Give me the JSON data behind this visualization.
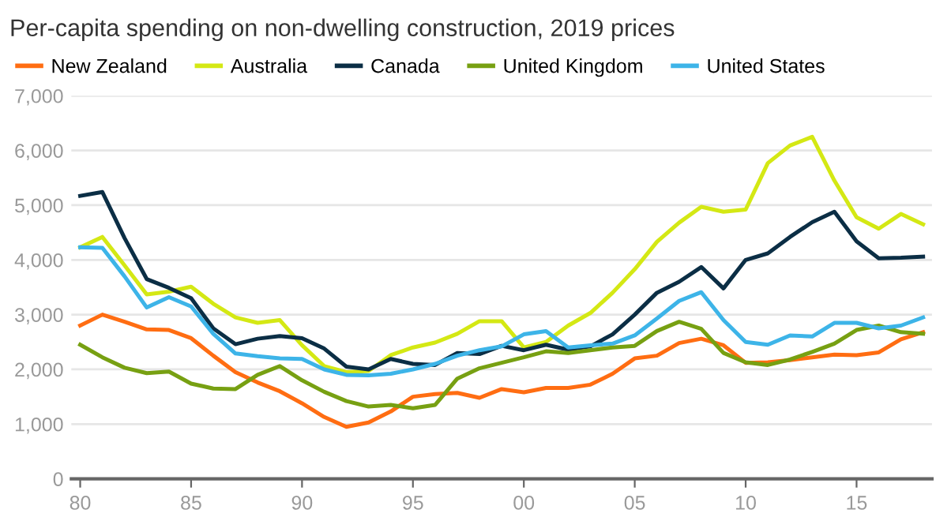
{
  "chart_data": {
    "type": "line",
    "title": "Per-capita spending on non-dwelling construction, 2019 prices",
    "x": [
      1980,
      1981,
      1982,
      1983,
      1984,
      1985,
      1986,
      1987,
      1988,
      1989,
      1990,
      1991,
      1992,
      1993,
      1994,
      1995,
      1996,
      1997,
      1998,
      1999,
      2000,
      2001,
      2002,
      2003,
      2004,
      2005,
      2006,
      2007,
      2008,
      2009,
      2010,
      2011,
      2012,
      2013,
      2014,
      2015,
      2016,
      2017,
      2018
    ],
    "series": [
      {
        "name": "New Zealand",
        "color": "#ff6d12",
        "values": [
          2800,
          3000,
          2870,
          2730,
          2720,
          2570,
          2250,
          1950,
          1760,
          1600,
          1380,
          1130,
          950,
          1030,
          1230,
          1500,
          1550,
          1570,
          1480,
          1640,
          1580,
          1660,
          1660,
          1720,
          1920,
          2200,
          2250,
          2480,
          2560,
          2440,
          2120,
          2130,
          2170,
          2220,
          2270,
          2260,
          2310,
          2550,
          2680
        ]
      },
      {
        "name": "Australia",
        "color": "#d4e814",
        "values": [
          4230,
          4420,
          3900,
          3370,
          3420,
          3510,
          3200,
          2950,
          2850,
          2900,
          2440,
          2060,
          1950,
          1970,
          2260,
          2400,
          2490,
          2650,
          2880,
          2880,
          2400,
          2500,
          2800,
          3030,
          3400,
          3830,
          4330,
          4680,
          4970,
          4880,
          4920,
          5770,
          6090,
          6250,
          5450,
          4780,
          4570,
          4840,
          4650
        ]
      },
      {
        "name": "Canada",
        "color": "#0b2e45",
        "values": [
          5170,
          5240,
          4400,
          3650,
          3490,
          3300,
          2750,
          2460,
          2560,
          2610,
          2570,
          2380,
          2050,
          2000,
          2190,
          2100,
          2080,
          2300,
          2280,
          2430,
          2350,
          2450,
          2360,
          2420,
          2640,
          3000,
          3400,
          3600,
          3870,
          3480,
          4000,
          4120,
          4420,
          4690,
          4880,
          4340,
          4030,
          4040,
          4060
        ]
      },
      {
        "name": "United Kingdom",
        "color": "#77a012",
        "values": [
          2450,
          2220,
          2030,
          1930,
          1960,
          1740,
          1650,
          1640,
          1900,
          2060,
          1800,
          1590,
          1420,
          1320,
          1350,
          1290,
          1350,
          1830,
          2020,
          2120,
          2220,
          2330,
          2300,
          2350,
          2400,
          2430,
          2700,
          2870,
          2740,
          2300,
          2130,
          2080,
          2180,
          2320,
          2470,
          2720,
          2800,
          2680,
          2650
        ]
      },
      {
        "name": "United States",
        "color": "#3db4e8",
        "values": [
          4230,
          4220,
          3700,
          3130,
          3320,
          3150,
          2650,
          2290,
          2240,
          2200,
          2190,
          2000,
          1900,
          1890,
          1920,
          2000,
          2100,
          2250,
          2350,
          2420,
          2640,
          2700,
          2400,
          2440,
          2470,
          2620,
          2930,
          3250,
          3410,
          2900,
          2500,
          2450,
          2620,
          2600,
          2850,
          2850,
          2750,
          2800,
          2950
        ]
      }
    ],
    "xlim": [
      1979.6,
      2018.4
    ],
    "xticks": [
      {
        "value": 1980,
        "label": "80"
      },
      {
        "value": 1985,
        "label": "85"
      },
      {
        "value": 1990,
        "label": "90"
      },
      {
        "value": 1995,
        "label": "95"
      },
      {
        "value": 2000,
        "label": "00"
      },
      {
        "value": 2005,
        "label": "05"
      },
      {
        "value": 2010,
        "label": "10"
      },
      {
        "value": 2015,
        "label": "15"
      }
    ],
    "ylim": [
      0,
      7000
    ],
    "yticks": [
      {
        "value": 0,
        "label": "0"
      },
      {
        "value": 1000,
        "label": "1,000"
      },
      {
        "value": 2000,
        "label": "2,000"
      },
      {
        "value": 3000,
        "label": "3,000"
      },
      {
        "value": 4000,
        "label": "4,000"
      },
      {
        "value": 5000,
        "label": "5,000"
      },
      {
        "value": 6000,
        "label": "6,000"
      },
      {
        "value": 7000,
        "label": "7,000"
      }
    ],
    "grid": "y",
    "legend": "top left",
    "marker": "none",
    "line_style": "solid"
  }
}
